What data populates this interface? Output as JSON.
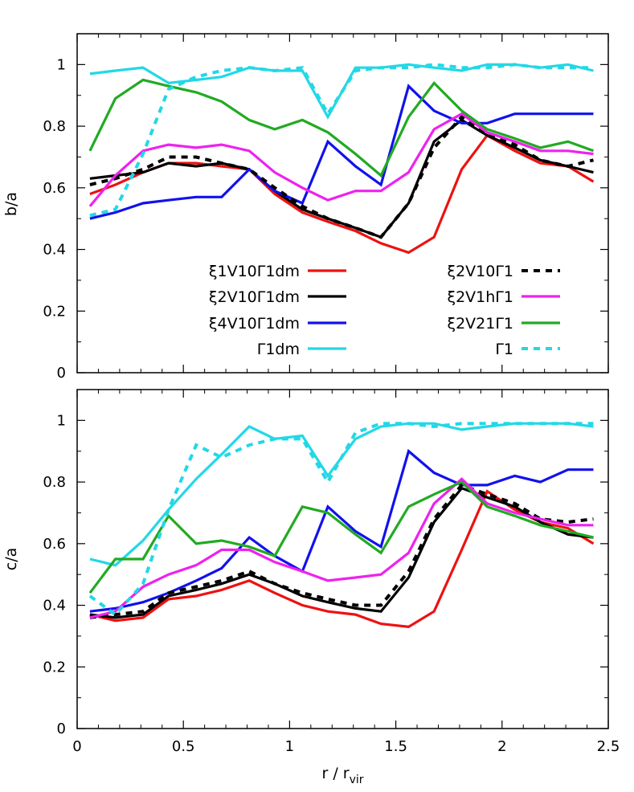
{
  "chart_data": [
    {
      "type": "line",
      "ylabel": "b/a",
      "xlabel": "",
      "xlim": [
        0,
        2.5
      ],
      "ylim": [
        0,
        1.1
      ],
      "xticks": [
        "0",
        "0.5",
        "1",
        "1.5",
        "2",
        "2.5"
      ],
      "yticks": [
        "0",
        "0.2",
        "0.4",
        "0.6",
        "0.8",
        "1"
      ],
      "legend_placement": "bottom-center",
      "series": [
        {
          "name": "ξ1V10Γ1dm",
          "color": "#ee1111",
          "dash": false,
          "x": [
            0.06,
            0.18,
            0.31,
            0.43,
            0.56,
            0.68,
            0.81,
            0.93,
            1.06,
            1.18,
            1.31,
            1.43,
            1.56,
            1.68,
            1.81,
            1.93,
            2.06,
            2.18,
            2.31,
            2.43
          ],
          "y": [
            0.58,
            0.61,
            0.65,
            0.68,
            0.68,
            0.67,
            0.66,
            0.58,
            0.52,
            0.49,
            0.46,
            0.42,
            0.39,
            0.44,
            0.66,
            0.77,
            0.72,
            0.68,
            0.67,
            0.62
          ]
        },
        {
          "name": "ξ2V10Γ1dm",
          "color": "#000000",
          "dash": false,
          "x": [
            0.06,
            0.18,
            0.31,
            0.43,
            0.56,
            0.68,
            0.81,
            0.93,
            1.06,
            1.18,
            1.31,
            1.43,
            1.56,
            1.68,
            1.81,
            1.93,
            2.06,
            2.18,
            2.31,
            2.43
          ],
          "y": [
            0.63,
            0.64,
            0.65,
            0.68,
            0.67,
            0.68,
            0.66,
            0.59,
            0.53,
            0.5,
            0.47,
            0.44,
            0.55,
            0.75,
            0.82,
            0.77,
            0.73,
            0.69,
            0.67,
            0.65
          ]
        },
        {
          "name": "ξ4V10Γ1dm",
          "color": "#1111ee",
          "dash": false,
          "x": [
            0.06,
            0.18,
            0.31,
            0.43,
            0.56,
            0.68,
            0.81,
            0.93,
            1.06,
            1.18,
            1.31,
            1.43,
            1.56,
            1.68,
            1.81,
            1.93,
            2.06,
            2.18,
            2.31,
            2.43
          ],
          "y": [
            0.5,
            0.52,
            0.55,
            0.56,
            0.57,
            0.57,
            0.66,
            0.59,
            0.55,
            0.75,
            0.67,
            0.61,
            0.93,
            0.85,
            0.81,
            0.81,
            0.84,
            0.84,
            0.84,
            0.84
          ]
        },
        {
          "name": "Γ1dm",
          "color": "#22d8e6",
          "dash": false,
          "x": [
            0.06,
            0.18,
            0.31,
            0.43,
            0.56,
            0.68,
            0.81,
            0.93,
            1.06,
            1.18,
            1.31,
            1.43,
            1.56,
            1.68,
            1.81,
            1.93,
            2.06,
            2.18,
            2.31,
            2.43
          ],
          "y": [
            0.97,
            0.98,
            0.99,
            0.94,
            0.95,
            0.96,
            0.99,
            0.98,
            0.98,
            0.83,
            0.99,
            0.99,
            1.0,
            0.99,
            0.98,
            1.0,
            1.0,
            0.99,
            1.0,
            0.98
          ]
        },
        {
          "name": "ξ2V10Γ1",
          "color": "#000000",
          "dash": true,
          "x": [
            0.06,
            0.18,
            0.31,
            0.43,
            0.56,
            0.68,
            0.81,
            0.93,
            1.06,
            1.18,
            1.31,
            1.43,
            1.56,
            1.68,
            1.81,
            1.93,
            2.06,
            2.18,
            2.31,
            2.43
          ],
          "y": [
            0.61,
            0.63,
            0.66,
            0.7,
            0.7,
            0.68,
            0.66,
            0.6,
            0.54,
            0.5,
            0.47,
            0.44,
            0.55,
            0.73,
            0.83,
            0.77,
            0.74,
            0.69,
            0.67,
            0.69
          ]
        },
        {
          "name": "ξ2V1hΓ1",
          "color": "#ee22ee",
          "dash": false,
          "x": [
            0.06,
            0.18,
            0.31,
            0.43,
            0.56,
            0.68,
            0.81,
            0.93,
            1.06,
            1.18,
            1.31,
            1.43,
            1.56,
            1.68,
            1.81,
            1.93,
            2.06,
            2.18,
            2.31,
            2.43
          ],
          "y": [
            0.54,
            0.64,
            0.72,
            0.74,
            0.73,
            0.74,
            0.72,
            0.65,
            0.6,
            0.56,
            0.59,
            0.59,
            0.65,
            0.79,
            0.84,
            0.78,
            0.75,
            0.72,
            0.72,
            0.71
          ]
        },
        {
          "name": "ξ2V21Γ1",
          "color": "#22aa22",
          "dash": false,
          "x": [
            0.06,
            0.18,
            0.31,
            0.43,
            0.56,
            0.68,
            0.81,
            0.93,
            1.06,
            1.18,
            1.31,
            1.43,
            1.56,
            1.68,
            1.81,
            1.93,
            2.06,
            2.18,
            2.31,
            2.43
          ],
          "y": [
            0.72,
            0.89,
            0.95,
            0.93,
            0.91,
            0.88,
            0.82,
            0.79,
            0.82,
            0.78,
            0.71,
            0.64,
            0.83,
            0.94,
            0.85,
            0.79,
            0.76,
            0.73,
            0.75,
            0.72
          ]
        },
        {
          "name": "Γ1",
          "color": "#22d8e6",
          "dash": true,
          "x": [
            0.06,
            0.18,
            0.31,
            0.43,
            0.56,
            0.68,
            0.81,
            0.93,
            1.06,
            1.18,
            1.31,
            1.43,
            1.56,
            1.68,
            1.81,
            1.93,
            2.06,
            2.18,
            2.31,
            2.43
          ],
          "y": [
            0.51,
            0.53,
            0.71,
            0.92,
            0.96,
            0.98,
            0.99,
            0.98,
            0.99,
            0.84,
            0.98,
            0.99,
            0.99,
            1.0,
            0.99,
            0.99,
            1.0,
            0.99,
            0.99,
            0.99
          ]
        }
      ]
    },
    {
      "type": "line",
      "ylabel": "c/a",
      "xlabel": "r / r_vir",
      "xlim": [
        0,
        2.5
      ],
      "ylim": [
        0,
        1.1
      ],
      "xticks": [
        "0",
        "0.5",
        "1",
        "1.5",
        "2",
        "2.5"
      ],
      "yticks": [
        "0",
        "0.2",
        "0.4",
        "0.6",
        "0.8",
        "1"
      ],
      "series": [
        {
          "name": "ξ1V10Γ1dm",
          "color": "#ee1111",
          "dash": false,
          "x": [
            0.06,
            0.18,
            0.31,
            0.43,
            0.56,
            0.68,
            0.81,
            0.93,
            1.06,
            1.18,
            1.31,
            1.43,
            1.56,
            1.68,
            1.81,
            1.93,
            2.06,
            2.18,
            2.31,
            2.43
          ],
          "y": [
            0.37,
            0.35,
            0.36,
            0.42,
            0.43,
            0.45,
            0.48,
            0.44,
            0.4,
            0.38,
            0.37,
            0.34,
            0.33,
            0.38,
            0.58,
            0.77,
            0.71,
            0.67,
            0.65,
            0.6
          ]
        },
        {
          "name": "ξ2V10Γ1dm",
          "color": "#000000",
          "dash": false,
          "x": [
            0.06,
            0.18,
            0.31,
            0.43,
            0.56,
            0.68,
            0.81,
            0.93,
            1.06,
            1.18,
            1.31,
            1.43,
            1.56,
            1.68,
            1.81,
            1.93,
            2.06,
            2.18,
            2.31,
            2.43
          ],
          "y": [
            0.37,
            0.36,
            0.37,
            0.43,
            0.45,
            0.47,
            0.5,
            0.47,
            0.43,
            0.41,
            0.39,
            0.38,
            0.49,
            0.67,
            0.78,
            0.75,
            0.72,
            0.67,
            0.63,
            0.62
          ]
        },
        {
          "name": "ξ4V10Γ1dm",
          "color": "#1111ee",
          "dash": false,
          "x": [
            0.06,
            0.18,
            0.31,
            0.43,
            0.56,
            0.68,
            0.81,
            0.93,
            1.06,
            1.18,
            1.31,
            1.43,
            1.56,
            1.68,
            1.81,
            1.93,
            2.06,
            2.18,
            2.31,
            2.43
          ],
          "y": [
            0.38,
            0.39,
            0.41,
            0.44,
            0.48,
            0.52,
            0.62,
            0.56,
            0.51,
            0.72,
            0.64,
            0.59,
            0.9,
            0.83,
            0.79,
            0.79,
            0.82,
            0.8,
            0.84,
            0.84
          ]
        },
        {
          "name": "Γ1dm",
          "color": "#22d8e6",
          "dash": false,
          "x": [
            0.06,
            0.18,
            0.31,
            0.43,
            0.56,
            0.68,
            0.81,
            0.93,
            1.06,
            1.18,
            1.31,
            1.43,
            1.56,
            1.68,
            1.81,
            1.93,
            2.06,
            2.18,
            2.31,
            2.43
          ],
          "y": [
            0.55,
            0.53,
            0.61,
            0.71,
            0.81,
            0.89,
            0.98,
            0.94,
            0.95,
            0.82,
            0.94,
            0.98,
            0.99,
            0.99,
            0.97,
            0.98,
            0.99,
            0.99,
            0.99,
            0.98
          ]
        },
        {
          "name": "ξ2V10Γ1",
          "color": "#000000",
          "dash": true,
          "x": [
            0.06,
            0.18,
            0.31,
            0.43,
            0.56,
            0.68,
            0.81,
            0.93,
            1.06,
            1.18,
            1.31,
            1.43,
            1.56,
            1.68,
            1.81,
            1.93,
            2.06,
            2.18,
            2.31,
            2.43
          ],
          "y": [
            0.36,
            0.37,
            0.38,
            0.44,
            0.46,
            0.48,
            0.51,
            0.47,
            0.44,
            0.42,
            0.4,
            0.4,
            0.51,
            0.68,
            0.79,
            0.76,
            0.73,
            0.68,
            0.67,
            0.68
          ]
        },
        {
          "name": "ξ2V1hΓ1",
          "color": "#ee22ee",
          "dash": false,
          "x": [
            0.06,
            0.18,
            0.31,
            0.43,
            0.56,
            0.68,
            0.81,
            0.93,
            1.06,
            1.18,
            1.31,
            1.43,
            1.56,
            1.68,
            1.81,
            1.93,
            2.06,
            2.18,
            2.31,
            2.43
          ],
          "y": [
            0.36,
            0.38,
            0.46,
            0.5,
            0.53,
            0.58,
            0.58,
            0.54,
            0.51,
            0.48,
            0.49,
            0.5,
            0.57,
            0.73,
            0.81,
            0.73,
            0.7,
            0.68,
            0.66,
            0.66
          ]
        },
        {
          "name": "ξ2V21Γ1",
          "color": "#22aa22",
          "dash": false,
          "x": [
            0.06,
            0.18,
            0.31,
            0.43,
            0.56,
            0.68,
            0.81,
            0.93,
            1.06,
            1.18,
            1.31,
            1.43,
            1.56,
            1.68,
            1.81,
            1.93,
            2.06,
            2.18,
            2.31,
            2.43
          ],
          "y": [
            0.44,
            0.55,
            0.55,
            0.69,
            0.6,
            0.61,
            0.59,
            0.56,
            0.72,
            0.7,
            0.63,
            0.57,
            0.72,
            0.76,
            0.8,
            0.72,
            0.69,
            0.66,
            0.64,
            0.62
          ]
        },
        {
          "name": "Γ1",
          "color": "#22d8e6",
          "dash": true,
          "x": [
            0.06,
            0.18,
            0.31,
            0.43,
            0.56,
            0.68,
            0.81,
            0.93,
            1.06,
            1.18,
            1.31,
            1.43,
            1.56,
            1.68,
            1.81,
            1.93,
            2.06,
            2.18,
            2.31,
            2.43
          ],
          "y": [
            0.43,
            0.37,
            0.47,
            0.71,
            0.92,
            0.88,
            0.92,
            0.94,
            0.94,
            0.8,
            0.96,
            0.99,
            0.99,
            0.98,
            0.99,
            0.99,
            0.99,
            0.99,
            0.99,
            0.99
          ]
        }
      ]
    }
  ]
}
